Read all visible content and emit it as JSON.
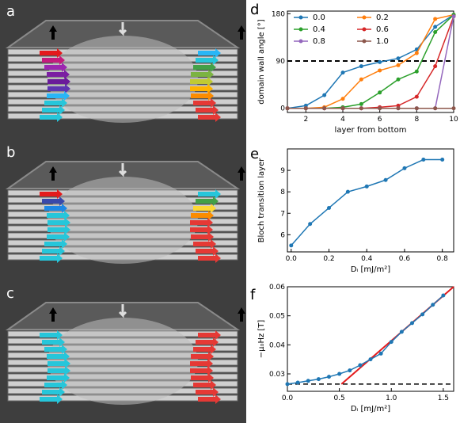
{
  "figure": {
    "panel_labels": {
      "a": "a",
      "b": "b",
      "c": "c",
      "d": "d",
      "e": "e",
      "f": "f"
    }
  },
  "chart_data": [
    {
      "panel": "d",
      "type": "line",
      "xlabel": "layer from bottom",
      "ylabel": "domain wall angle [°]",
      "xlim": [
        1,
        10
      ],
      "ylim": [
        -8,
        185
      ],
      "xticks": [
        "2",
        "4",
        "6",
        "8",
        "10"
      ],
      "yticks": [
        "0",
        "90",
        "180"
      ],
      "legend_position": "top-left",
      "x": [
        1,
        2,
        3,
        4,
        5,
        6,
        7,
        8,
        9,
        10
      ],
      "reference_line": {
        "y": 90,
        "style": "dashed",
        "color": "#000000"
      },
      "series": [
        {
          "name": "0.0",
          "color": "#1f77b4",
          "values": [
            0,
            5,
            25,
            68,
            80,
            88,
            95,
            112,
            155,
            178
          ]
        },
        {
          "name": "0.2",
          "color": "#ff7f0e",
          "values": [
            0,
            0,
            2,
            18,
            55,
            72,
            82,
            105,
            170,
            178
          ]
        },
        {
          "name": "0.4",
          "color": "#2ca02c",
          "values": [
            0,
            0,
            0,
            2,
            8,
            30,
            55,
            70,
            145,
            178
          ]
        },
        {
          "name": "0.6",
          "color": "#d62728",
          "values": [
            0,
            0,
            0,
            0,
            0,
            2,
            5,
            22,
            80,
            175
          ]
        },
        {
          "name": "0.8",
          "color": "#9467bd",
          "values": [
            0,
            0,
            0,
            0,
            0,
            0,
            0,
            0,
            0,
            175
          ]
        },
        {
          "name": "1.0",
          "color": "#8c564b",
          "values": [
            0,
            0,
            0,
            0,
            0,
            0,
            0,
            0,
            0,
            0
          ]
        }
      ]
    },
    {
      "panel": "e",
      "type": "line",
      "xlabel": "Dᵢ [mJ/m²]",
      "ylabel": "Bloch transition layer",
      "xlim": [
        -0.02,
        0.86
      ],
      "ylim": [
        5.2,
        10
      ],
      "xticks": [
        "0.0",
        "0.2",
        "0.4",
        "0.6",
        "0.8"
      ],
      "yticks": [
        "6",
        "7",
        "8",
        "9"
      ],
      "x": [
        0.0,
        0.1,
        0.2,
        0.3,
        0.4,
        0.5,
        0.6,
        0.7,
        0.8
      ],
      "series": [
        {
          "name": "",
          "color": "#1f77b4",
          "values": [
            5.5,
            6.5,
            7.25,
            8.0,
            8.25,
            8.55,
            9.1,
            9.5,
            9.5
          ]
        }
      ]
    },
    {
      "panel": "f",
      "type": "line",
      "xlabel": "Dᵢ [mJ/m²]",
      "ylabel": "−μ₀Hz [T]",
      "xlim": [
        0,
        1.6
      ],
      "ylim": [
        0.024,
        0.06
      ],
      "xticks": [
        "0.0",
        "0.5",
        "1.0",
        "1.5"
      ],
      "yticks": [
        "0.03",
        "0.04",
        "0.05",
        "0.06"
      ],
      "x": [
        0.0,
        0.1,
        0.2,
        0.3,
        0.4,
        0.5,
        0.6,
        0.7,
        0.8,
        0.9,
        1.0,
        1.1,
        1.2,
        1.3,
        1.4,
        1.5
      ],
      "series": [
        {
          "name": "",
          "color": "#1f77b4",
          "values": [
            0.0265,
            0.027,
            0.0276,
            0.0282,
            0.029,
            0.03,
            0.0312,
            0.033,
            0.035,
            0.037,
            0.041,
            0.0445,
            0.0475,
            0.0505,
            0.0538,
            0.057
          ]
        }
      ],
      "reference_lines": [
        {
          "type": "horizontal",
          "y": 0.0265,
          "style": "dashed",
          "color": "#000000"
        },
        {
          "type": "linear_fit",
          "from": [
            0.52,
            0.0265
          ],
          "to": [
            1.6,
            0.06
          ],
          "color": "#e41a1c"
        }
      ]
    }
  ]
}
